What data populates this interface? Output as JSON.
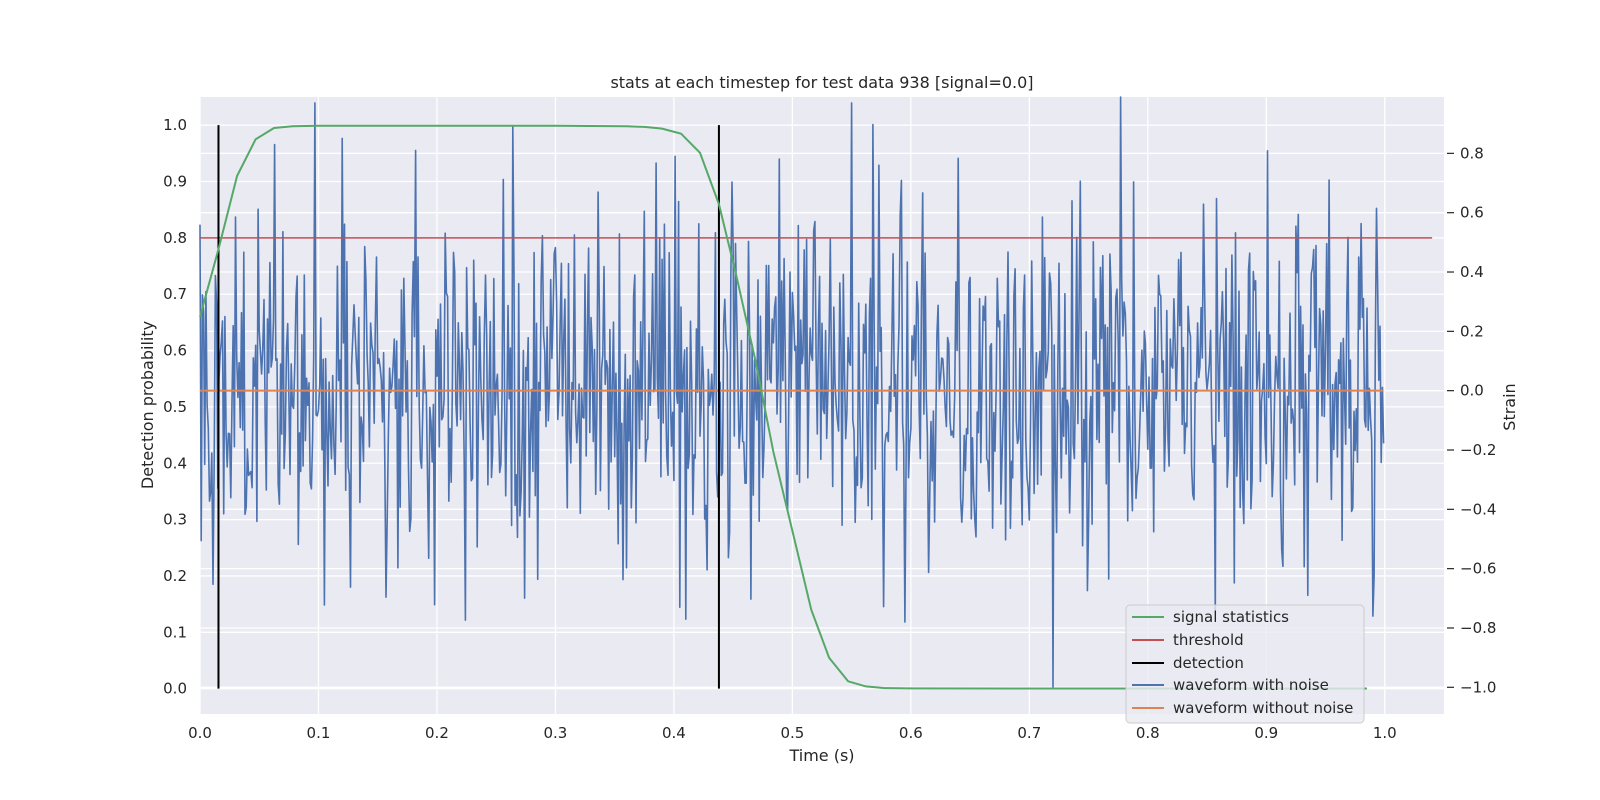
{
  "chart_data": {
    "type": "line",
    "title": "stats at each timestep for test data 938 [signal=0.0]",
    "xlabel": "Time (s)",
    "ylabel": "Detection probability",
    "ylabel_right": "Strain",
    "xlim": [
      0.0,
      1.05
    ],
    "ylim": [
      -0.045,
      1.05
    ],
    "ylim_right": [
      -1.09,
      0.99
    ],
    "x_ticks": [
      "0.0",
      "0.1",
      "0.2",
      "0.3",
      "0.4",
      "0.5",
      "0.6",
      "0.7",
      "0.8",
      "0.9",
      "1.0"
    ],
    "y_ticks": [
      "0.0",
      "0.1",
      "0.2",
      "0.3",
      "0.4",
      "0.5",
      "0.6",
      "0.7",
      "0.8",
      "0.9",
      "1.0"
    ],
    "y_ticks_right": [
      "−1.0",
      "−0.8",
      "−0.6",
      "−0.4",
      "−0.2",
      "0.0",
      "0.2",
      "0.4",
      "0.6",
      "0.8"
    ],
    "grid": true,
    "legend_position": "lower-right",
    "colors": {
      "background": "#eaeaf2",
      "grid": "#ffffff",
      "signal": "#55a868",
      "threshold": "#c44e52",
      "detection": "#000000",
      "waveform_noise": "#4c72b0",
      "waveform_clean": "#dd8452"
    },
    "signal_statistics": {
      "name": "signal statistics",
      "x": [
        0.0,
        0.0156,
        0.0313,
        0.0469,
        0.0625,
        0.0781,
        0.1,
        0.2,
        0.3,
        0.36,
        0.375,
        0.39,
        0.406,
        0.422,
        0.438,
        0.453,
        0.469,
        0.484,
        0.5,
        0.516,
        0.531,
        0.547,
        0.562,
        0.578,
        0.6,
        0.7,
        0.8,
        0.9,
        0.985
      ],
      "y": [
        0.66,
        0.78,
        0.91,
        0.975,
        0.995,
        0.998,
        0.999,
        0.999,
        0.999,
        0.998,
        0.997,
        0.994,
        0.985,
        0.951,
        0.86,
        0.73,
        0.58,
        0.42,
        0.28,
        0.14,
        0.055,
        0.013,
        0.004,
        0.001,
        0.0005,
        0.0003,
        0.0002,
        0.0002,
        0.0002
      ]
    },
    "threshold": {
      "name": "threshold",
      "y": 0.8,
      "x_range": [
        0.0,
        1.04
      ]
    },
    "detection": {
      "name": "detection",
      "x": [
        0.0156,
        0.438
      ],
      "y_range": [
        0.0,
        1.0
      ]
    },
    "waveform_with_noise": {
      "name": "waveform with noise",
      "n_points": 1000,
      "x_range": [
        0.0,
        0.999
      ],
      "amplitude_std": 0.29,
      "notable_points": [
        [
          0.0,
          0.56
        ],
        [
          0.063,
          0.83
        ],
        [
          0.182,
          0.81
        ],
        [
          0.405,
          -0.73
        ],
        [
          0.41,
          -0.77
        ],
        [
          0.573,
          0.76
        ],
        [
          0.595,
          -0.78
        ],
        [
          0.72,
          -1.0
        ],
        [
          0.777,
          0.99
        ],
        [
          0.935,
          -0.69
        ],
        [
          0.953,
          0.71
        ],
        [
          0.99,
          -0.76
        ]
      ]
    },
    "waveform_without_noise": {
      "name": "waveform without noise",
      "x_range": [
        0.0,
        0.999
      ],
      "y": 0.0
    }
  }
}
